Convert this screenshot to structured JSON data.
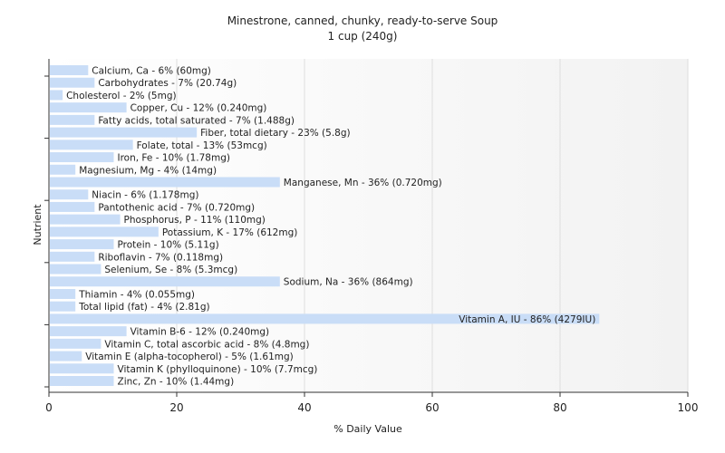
{
  "chart_data": {
    "type": "bar",
    "orientation": "horizontal",
    "title": "Minestrone, canned, chunky, ready-to-serve Soup",
    "subtitle": "1 cup (240g)",
    "xlabel": "% Daily Value",
    "ylabel": "Nutrient",
    "xlim": [
      0,
      100
    ],
    "xticks": [
      0,
      20,
      40,
      60,
      80,
      100
    ],
    "grid": true,
    "bar_color": "#c9ddf7",
    "categories": [
      "Calcium, Ca",
      "Carbohydrates",
      "Cholesterol",
      "Copper, Cu",
      "Fatty acids, total saturated",
      "Fiber, total dietary",
      "Folate, total",
      "Iron, Fe",
      "Magnesium, Mg",
      "Manganese, Mn",
      "Niacin",
      "Pantothenic acid",
      "Phosphorus, P",
      "Potassium, K",
      "Protein",
      "Riboflavin",
      "Selenium, Se",
      "Sodium, Na",
      "Thiamin",
      "Total lipid (fat)",
      "Vitamin A, IU",
      "Vitamin B-6",
      "Vitamin C, total ascorbic acid",
      "Vitamin E (alpha-tocopherol)",
      "Vitamin K (phylloquinone)",
      "Zinc, Zn"
    ],
    "values": [
      6,
      7,
      2,
      12,
      7,
      23,
      13,
      10,
      4,
      36,
      6,
      7,
      11,
      17,
      10,
      7,
      8,
      36,
      4,
      4,
      86,
      12,
      8,
      5,
      10,
      10
    ],
    "labels": [
      "Calcium, Ca - 6% (60mg)",
      "Carbohydrates - 7% (20.74g)",
      "Cholesterol - 2% (5mg)",
      "Copper, Cu - 12% (0.240mg)",
      "Fatty acids, total saturated - 7% (1.488g)",
      "Fiber, total dietary - 23% (5.8g)",
      "Folate, total - 13% (53mcg)",
      "Iron, Fe - 10% (1.78mg)",
      "Magnesium, Mg - 4% (14mg)",
      "Manganese, Mn - 36% (0.720mg)",
      "Niacin - 6% (1.178mg)",
      "Pantothenic acid - 7% (0.720mg)",
      "Phosphorus, P - 11% (110mg)",
      "Potassium, K - 17% (612mg)",
      "Protein - 10% (5.11g)",
      "Riboflavin - 7% (0.118mg)",
      "Selenium, Se - 8% (5.3mcg)",
      "Sodium, Na - 36% (864mg)",
      "Thiamin - 4% (0.055mg)",
      "Total lipid (fat) - 4% (2.81g)",
      "Vitamin A, IU - 86% (4279IU)",
      "Vitamin B-6 - 12% (0.240mg)",
      "Vitamin C, total ascorbic acid - 8% (4.8mg)",
      "Vitamin E (alpha-tocopherol) - 5% (1.61mg)",
      "Vitamin K (phylloquinone) - 10% (7.7mcg)",
      "Zinc, Zn - 10% (1.44mg)"
    ]
  }
}
